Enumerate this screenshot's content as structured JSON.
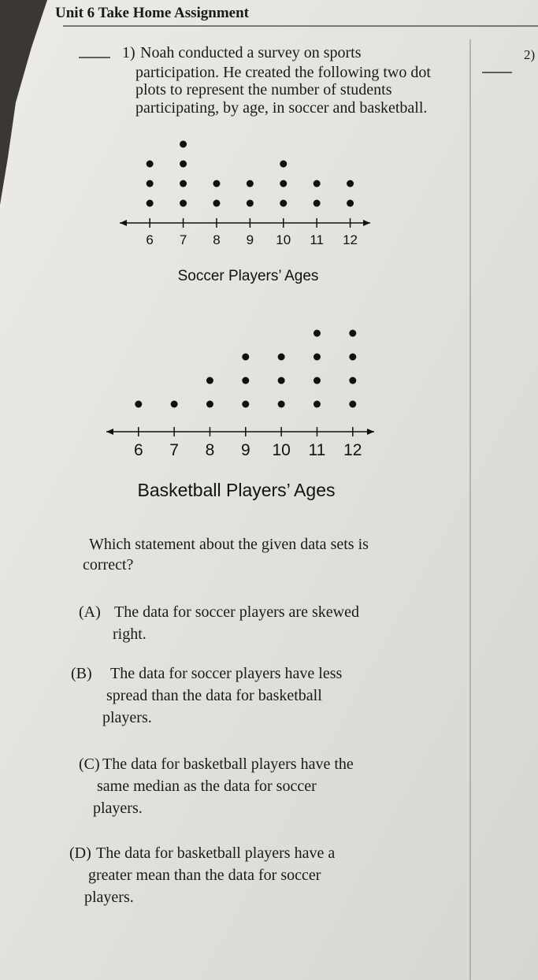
{
  "header": {
    "title": "Unit 6 Take Home Assignment",
    "next_number": "2)"
  },
  "question": {
    "number": "1)",
    "lines": [
      "Noah conducted a survey on sports",
      "participation. He created the following two dot",
      "plots to represent the number of students",
      "participating, by age, in soccer and basketball."
    ],
    "prompt": [
      "Which statement about the given data sets is",
      "correct?"
    ],
    "choices": [
      {
        "label": "(A)",
        "lines": [
          "The data for soccer players are skewed",
          "right."
        ]
      },
      {
        "label": "(B)",
        "lines": [
          "The data for soccer players have less",
          "spread than the data for basketball",
          "players."
        ]
      },
      {
        "label": "(C)",
        "lines": [
          "The data for basketball players have the",
          "same median as the data for soccer",
          "players."
        ]
      },
      {
        "label": "(D)",
        "lines": [
          "The data for basketball players have a",
          "greater mean than the data for soccer",
          "players."
        ]
      }
    ]
  },
  "chart_data": [
    {
      "type": "dot",
      "title": "Soccer Players’ Ages",
      "x": [
        6,
        7,
        8,
        9,
        10,
        11,
        12
      ],
      "values": [
        3,
        4,
        2,
        2,
        3,
        2,
        2
      ],
      "xlim": [
        5.1,
        12.6
      ],
      "xticks": [
        6,
        7,
        8,
        9,
        10,
        11,
        12
      ]
    },
    {
      "type": "dot",
      "title": "Basketball Players’ Ages",
      "x": [
        6,
        7,
        8,
        9,
        10,
        11,
        12
      ],
      "values": [
        1,
        1,
        2,
        3,
        3,
        4,
        4
      ],
      "xlim": [
        5.1,
        12.6
      ],
      "xticks": [
        6,
        7,
        8,
        9,
        10,
        11,
        12
      ]
    }
  ]
}
